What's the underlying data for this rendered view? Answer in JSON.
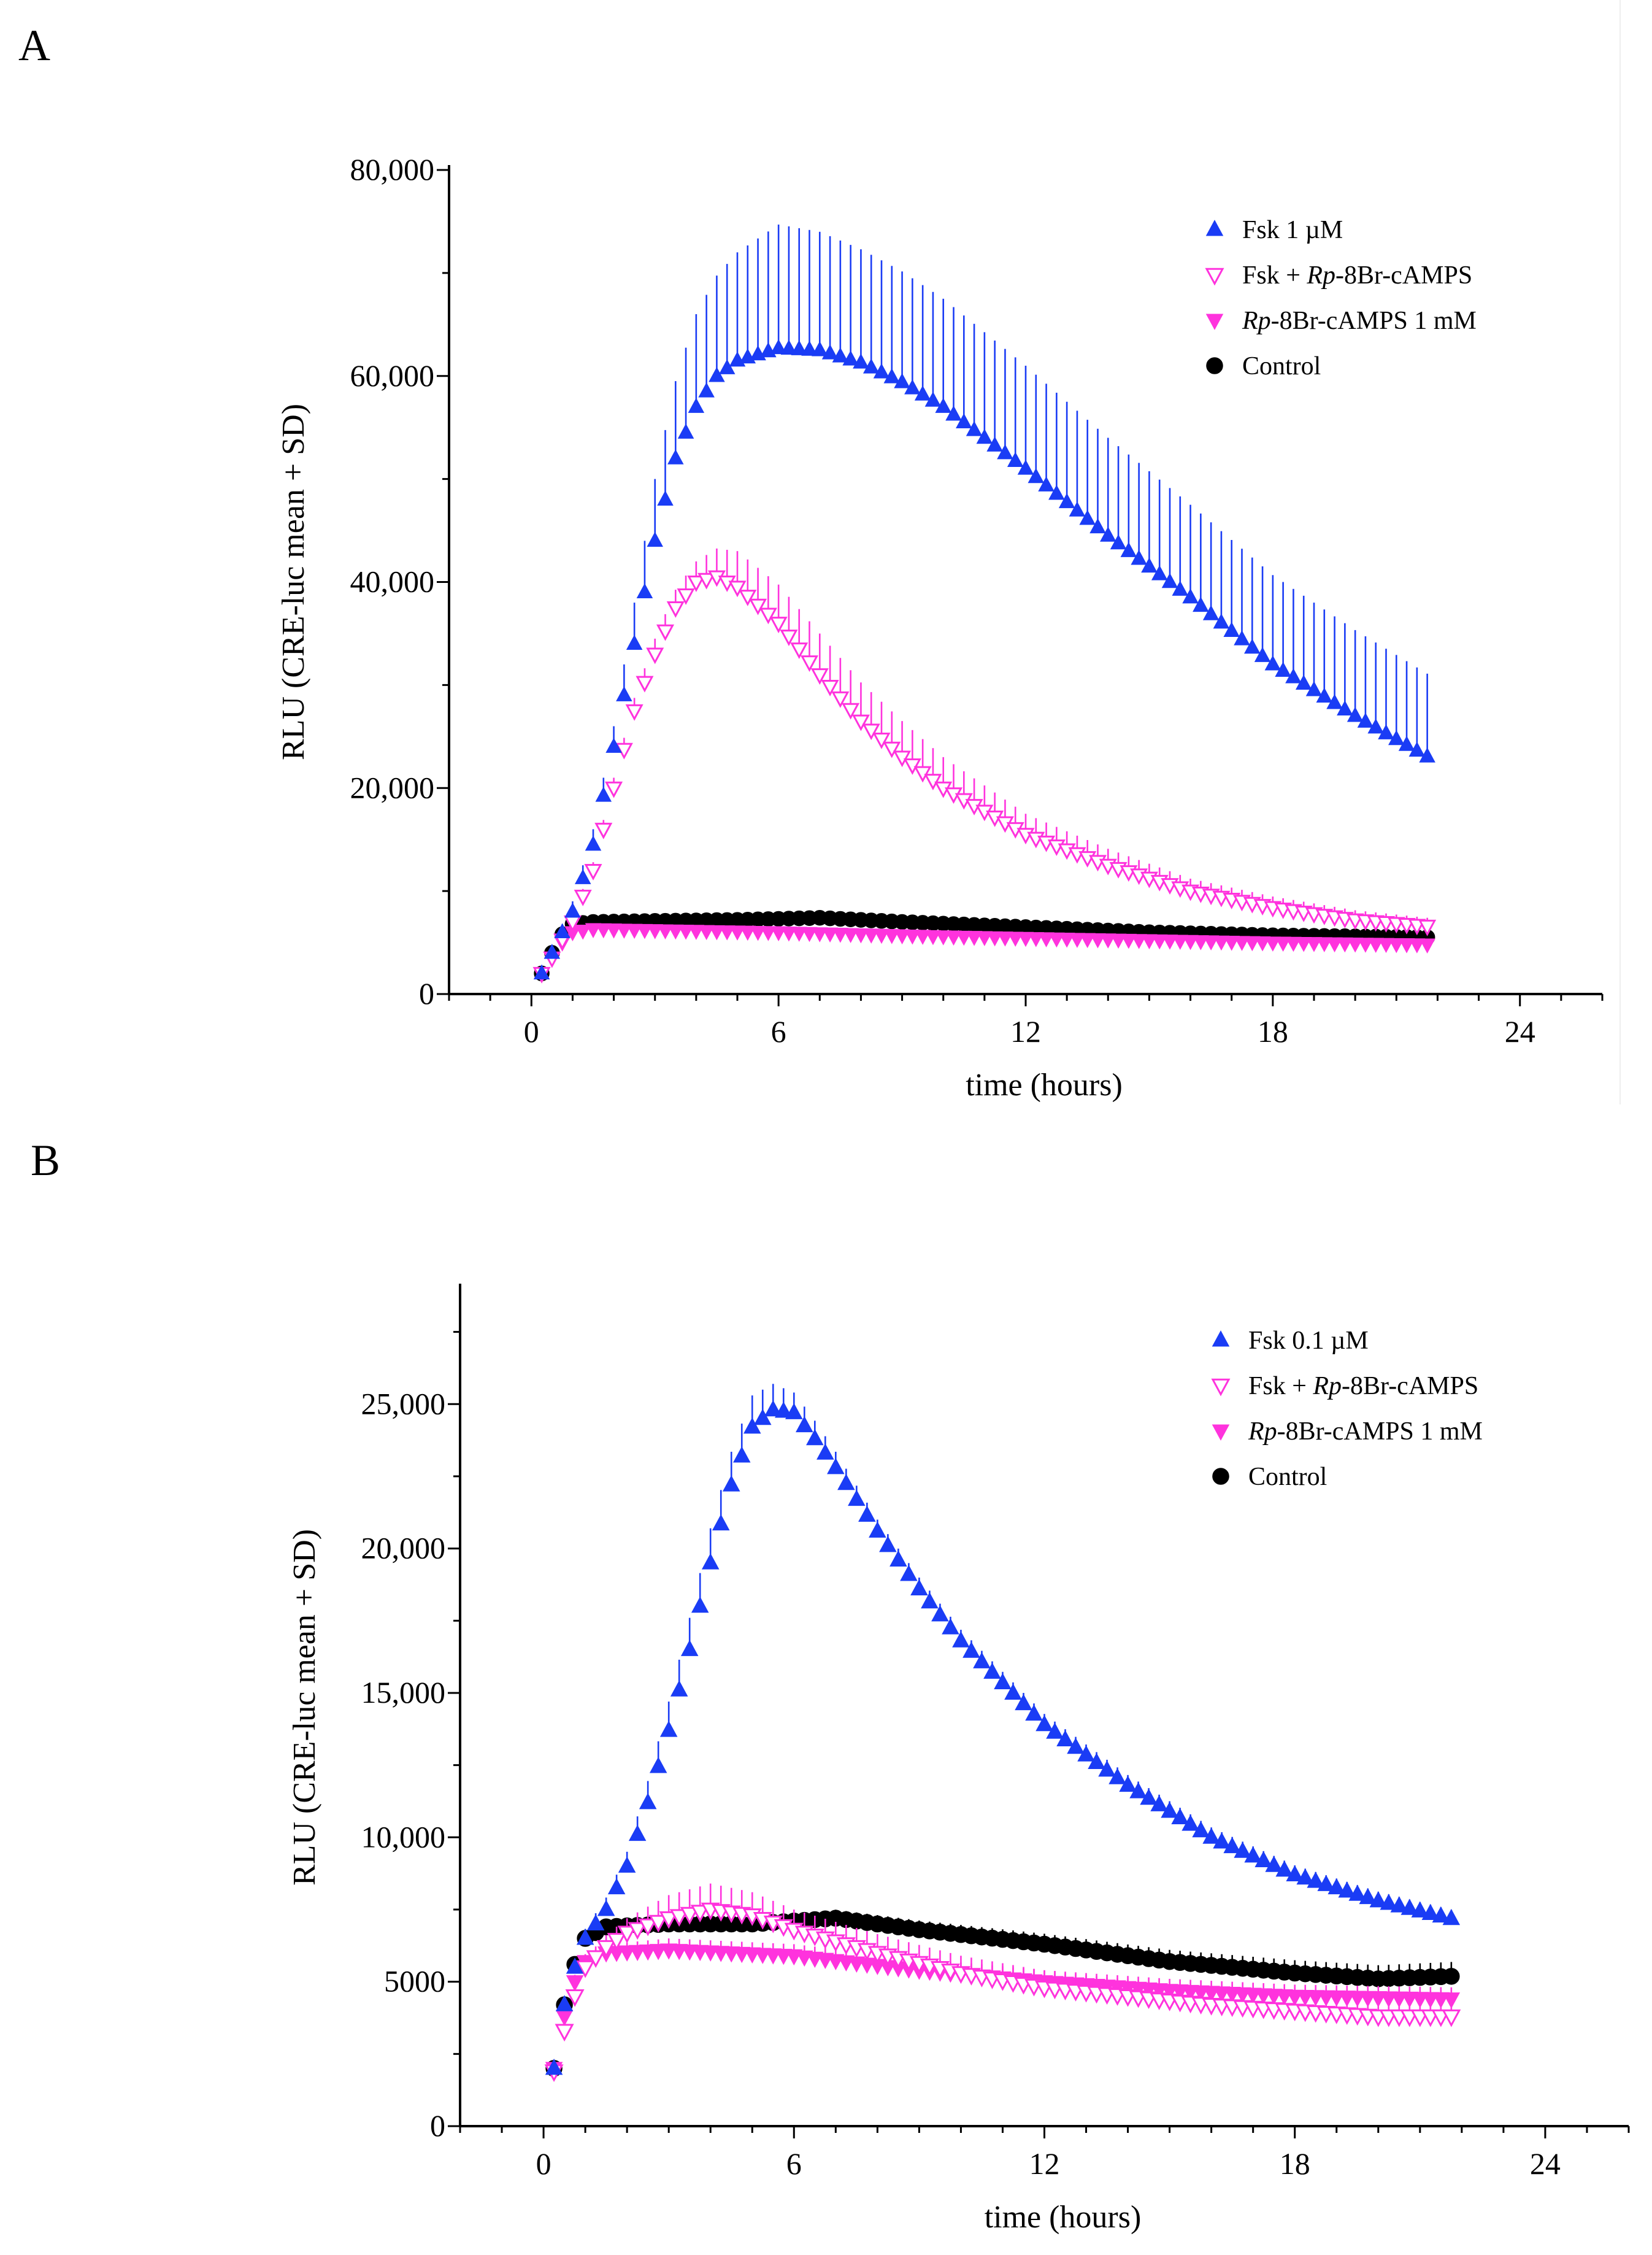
{
  "chart_data": [
    {
      "type": "scatter",
      "panel_label": "A",
      "xlabel": "time (hours)",
      "ylabel": "RLU (CRE-luc mean + SD)",
      "xlim": [
        -2,
        26
      ],
      "ylim": [
        0,
        80000
      ],
      "x_ticks": [
        0,
        6,
        12,
        18,
        24
      ],
      "x_tick_labels": [
        "0",
        "6",
        "12",
        "18",
        "24"
      ],
      "y_ticks": [
        0,
        20000,
        40000,
        60000,
        80000
      ],
      "y_tick_labels": [
        "0",
        "20,000",
        "40,000",
        "60,000",
        "80,000"
      ],
      "legend_position": "top-right",
      "x_start": 0.25,
      "x_step": 0.25,
      "n_points": 87,
      "series": [
        {
          "name": "Fsk 1 µM",
          "legend_prefix": "Fsk 1 µM",
          "legend_italic": "",
          "legend_suffix": "",
          "marker": "triangle-up",
          "filled": true,
          "color": "#1a3cf5",
          "knots": [
            [
              0.25,
              2000
            ],
            [
              0.5,
              4000
            ],
            [
              1,
              8000
            ],
            [
              1.5,
              14500
            ],
            [
              2,
              24000
            ],
            [
              2.5,
              34000
            ],
            [
              3,
              44000
            ],
            [
              3.5,
              52000
            ],
            [
              4,
              57000
            ],
            [
              4.5,
              60000
            ],
            [
              5,
              61500
            ],
            [
              6,
              62700
            ],
            [
              7,
              62500
            ],
            [
              8,
              61300
            ],
            [
              9,
              59400
            ],
            [
              10,
              57000
            ],
            [
              12,
              51000
            ],
            [
              14,
              44500
            ],
            [
              16,
              38500
            ],
            [
              18,
              32000
            ],
            [
              20,
              27000
            ],
            [
              22,
              22500
            ]
          ],
          "sd_knots": [
            [
              0.25,
              300
            ],
            [
              1,
              1000
            ],
            [
              2,
              2000
            ],
            [
              3,
              6000
            ],
            [
              4,
              9000
            ],
            [
              6,
              12000
            ],
            [
              8,
              11000
            ],
            [
              12,
              10000
            ],
            [
              16,
              9000
            ],
            [
              22,
              8000
            ]
          ]
        },
        {
          "name": "Fsk + Rp-8Br-cAMPS",
          "legend_prefix": "Fsk + ",
          "legend_italic": "Rp",
          "legend_suffix": "-8Br-cAMPS",
          "marker": "triangle-down",
          "filled": false,
          "color": "#ff33dd",
          "knots": [
            [
              0.25,
              2000
            ],
            [
              0.5,
              3500
            ],
            [
              1,
              7000
            ],
            [
              1.5,
              12000
            ],
            [
              2,
              20000
            ],
            [
              2.5,
              27500
            ],
            [
              3,
              33000
            ],
            [
              3.5,
              37500
            ],
            [
              4,
              40000
            ],
            [
              4.5,
              40500
            ],
            [
              5,
              39500
            ],
            [
              6,
              36000
            ],
            [
              7,
              31000
            ],
            [
              8,
              26500
            ],
            [
              9,
              23000
            ],
            [
              10,
              20000
            ],
            [
              12,
              15500
            ],
            [
              14,
              12500
            ],
            [
              16,
              10000
            ],
            [
              18,
              8400
            ],
            [
              20,
              7200
            ],
            [
              22,
              6500
            ]
          ],
          "sd_knots": [
            [
              0.25,
              300
            ],
            [
              2,
              1000
            ],
            [
              4,
              2000
            ],
            [
              5,
              3500
            ],
            [
              7,
              4000
            ],
            [
              9,
              3500
            ],
            [
              12,
              2000
            ],
            [
              16,
              1200
            ],
            [
              22,
              800
            ]
          ]
        },
        {
          "name": "Rp-8Br-cAMPS 1 mM",
          "legend_prefix": "",
          "legend_italic": "Rp",
          "legend_suffix": "-8Br-cAMPS 1 mM",
          "marker": "triangle-down",
          "filled": true,
          "color": "#ff33dd",
          "knots": [
            [
              0.25,
              2000
            ],
            [
              0.5,
              3500
            ],
            [
              0.75,
              5000
            ],
            [
              1,
              6000
            ],
            [
              1.5,
              6300
            ],
            [
              3,
              6200
            ],
            [
              6,
              6000
            ],
            [
              10,
              5600
            ],
            [
              14,
              5300
            ],
            [
              18,
              5000
            ],
            [
              22,
              4800
            ]
          ],
          "sd_knots": [
            [
              0.25,
              200
            ],
            [
              22,
              500
            ]
          ]
        },
        {
          "name": "Control",
          "legend_prefix": "Control",
          "legend_italic": "",
          "legend_suffix": "",
          "marker": "circle",
          "filled": true,
          "color": "#000000",
          "knots": [
            [
              0.25,
              2000
            ],
            [
              0.5,
              4000
            ],
            [
              0.75,
              5800
            ],
            [
              1,
              6800
            ],
            [
              1.5,
              7000
            ],
            [
              3,
              7100
            ],
            [
              5,
              7200
            ],
            [
              7,
              7400
            ],
            [
              9,
              7000
            ],
            [
              12,
              6500
            ],
            [
              15,
              6000
            ],
            [
              18,
              5700
            ],
            [
              22,
              5500
            ]
          ],
          "sd_knots": [
            [
              0.25,
              200
            ],
            [
              22,
              600
            ]
          ]
        }
      ]
    },
    {
      "type": "scatter",
      "panel_label": "B",
      "xlabel": "time (hours)",
      "ylabel": "RLU (CRE-luc mean + SD)",
      "xlim": [
        -2,
        26
      ],
      "ylim": [
        0,
        29000
      ],
      "x_ticks": [
        0,
        6,
        12,
        18,
        24
      ],
      "x_tick_labels": [
        "0",
        "6",
        "12",
        "18",
        "24"
      ],
      "y_ticks": [
        0,
        5000,
        10000,
        15000,
        20000,
        25000
      ],
      "y_tick_labels": [
        "0",
        "5000",
        "10,000",
        "15,000",
        "20,000",
        "25,000"
      ],
      "legend_position": "top-right",
      "x_start": 0.25,
      "x_step": 0.25,
      "n_points": 87,
      "series": [
        {
          "name": "Fsk 0.1 µM",
          "legend_prefix": "Fsk 0.1 µM",
          "legend_italic": "",
          "legend_suffix": "",
          "marker": "triangle-up",
          "filled": true,
          "color": "#1a3cf5",
          "knots": [
            [
              0.25,
              2000
            ],
            [
              0.5,
              4200
            ],
            [
              0.75,
              5500
            ],
            [
              1,
              6500
            ],
            [
              1.5,
              7500
            ],
            [
              2,
              9000
            ],
            [
              2.5,
              11200
            ],
            [
              3,
              13700
            ],
            [
              3.5,
              16500
            ],
            [
              4,
              19500
            ],
            [
              4.5,
              22200
            ],
            [
              5,
              24200
            ],
            [
              5.5,
              24800
            ],
            [
              6,
              24700
            ],
            [
              6.5,
              23800
            ],
            [
              7,
              22800
            ],
            [
              8,
              20600
            ],
            [
              9,
              18600
            ],
            [
              10,
              16800
            ],
            [
              12,
              13900
            ],
            [
              14,
              11800
            ],
            [
              16,
              10000
            ],
            [
              18,
              8700
            ],
            [
              20,
              7800
            ],
            [
              22,
              7100
            ]
          ],
          "sd_knots": [
            [
              0.25,
              200
            ],
            [
              2,
              500
            ],
            [
              3,
              1000
            ],
            [
              4,
              1200
            ],
            [
              5,
              1100
            ],
            [
              6,
              700
            ],
            [
              8,
              400
            ],
            [
              22,
              300
            ]
          ]
        },
        {
          "name": "Fsk + Rp-8Br-cAMPS",
          "legend_prefix": "Fsk + ",
          "legend_italic": "Rp",
          "legend_suffix": "-8Br-cAMPS",
          "marker": "triangle-down",
          "filled": false,
          "color": "#ff33dd",
          "knots": [
            [
              0.25,
              1900
            ],
            [
              0.5,
              3300
            ],
            [
              0.75,
              4500
            ],
            [
              1,
              5500
            ],
            [
              1.5,
              6200
            ],
            [
              2,
              6700
            ],
            [
              3,
              7200
            ],
            [
              4,
              7500
            ],
            [
              5,
              7300
            ],
            [
              6,
              6800
            ],
            [
              8,
              6000
            ],
            [
              10,
              5300
            ],
            [
              12,
              4800
            ],
            [
              14,
              4500
            ],
            [
              16,
              4200
            ],
            [
              18,
              4000
            ],
            [
              20,
              3800
            ],
            [
              22,
              3800
            ]
          ],
          "sd_knots": [
            [
              0.25,
              200
            ],
            [
              2,
              500
            ],
            [
              3,
              800
            ],
            [
              4,
              900
            ],
            [
              6,
              700
            ],
            [
              10,
              600
            ],
            [
              22,
              500
            ]
          ]
        },
        {
          "name": "Rp-8Br-cAMPS 1 mM",
          "legend_prefix": "",
          "legend_italic": "Rp",
          "legend_suffix": "-8Br-cAMPS 1 mM",
          "marker": "triangle-down",
          "filled": true,
          "color": "#ff33dd",
          "knots": [
            [
              0.25,
              2000
            ],
            [
              0.5,
              3800
            ],
            [
              0.75,
              5000
            ],
            [
              1,
              5700
            ],
            [
              1.5,
              6000
            ],
            [
              3,
              6100
            ],
            [
              6,
              5900
            ],
            [
              9,
              5400
            ],
            [
              12,
              5000
            ],
            [
              15,
              4700
            ],
            [
              18,
              4500
            ],
            [
              22,
              4400
            ]
          ],
          "sd_knots": [
            [
              0.25,
              200
            ],
            [
              3,
              400
            ],
            [
              22,
              400
            ]
          ]
        },
        {
          "name": "Control",
          "legend_prefix": "Control",
          "legend_italic": "",
          "legend_suffix": "",
          "marker": "circle",
          "filled": true,
          "color": "#000000",
          "knots": [
            [
              0.25,
              2000
            ],
            [
              0.5,
              4200
            ],
            [
              0.75,
              5600
            ],
            [
              1,
              6500
            ],
            [
              1.5,
              6900
            ],
            [
              3,
              7000
            ],
            [
              5,
              7000
            ],
            [
              7,
              7200
            ],
            [
              9,
              6800
            ],
            [
              12,
              6300
            ],
            [
              15,
              5700
            ],
            [
              18,
              5300
            ],
            [
              20,
              5100
            ],
            [
              22,
              5200
            ]
          ],
          "sd_knots": [
            [
              0.25,
              200
            ],
            [
              22,
              500
            ]
          ]
        }
      ]
    }
  ]
}
